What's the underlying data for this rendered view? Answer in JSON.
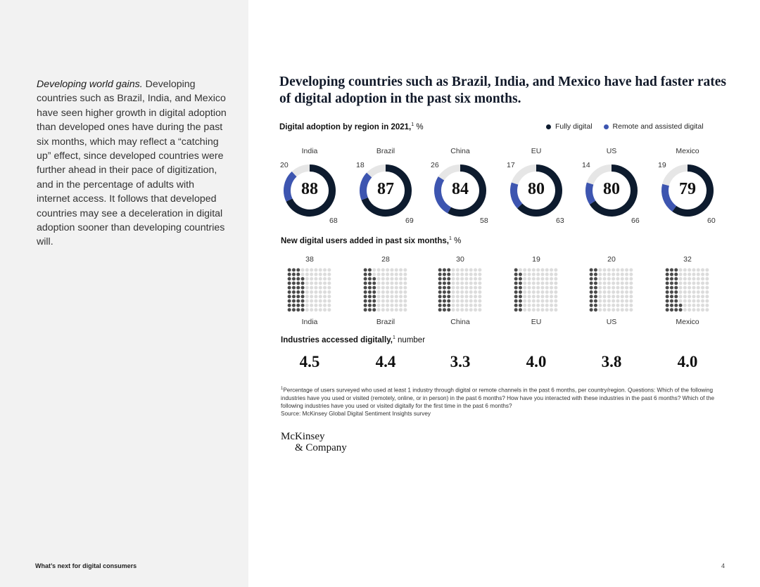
{
  "sidebar": {
    "intro_lead": "Developing world gains.",
    "intro_body": " Developing countries such as Brazil, India, and Mexico have seen higher growth in digital adoption than developed ones have during the past six months, which may reflect a “catching up” effect, since developed countries were further ahead in their pace of digitization, and in the percentage of adults with internet access. It follows that developed countries may see a deceleration in digital adoption sooner than developing countries will.",
    "footer": "What’s next for digital consumers"
  },
  "page_number": "4",
  "headline": "Developing countries such as Brazil, India, and Mexico have had faster rates of digital adoption in the past six months.",
  "sections": {
    "adoption_title": "Digital adoption by region in 2021,",
    "adoption_sup": "1",
    "adoption_unit": " %",
    "new_users_title": "New digital users added in past six months,",
    "new_users_sup": "1",
    "new_users_unit": " %",
    "industries_title": "Industries accessed digitally,",
    "industries_sup": "1",
    "industries_unit": " number"
  },
  "legend": {
    "fully_digital": "Fully digital",
    "remote_assisted": "Remote and assisted digital"
  },
  "colors": {
    "fully_digital": "#0d1b2e",
    "remote_assisted": "#3d55b0",
    "dot_filled": "#4a4a4a",
    "dot_empty": "#dcdcdc",
    "track": "#e6e6e6"
  },
  "chart_data": [
    {
      "type": "donut",
      "title": "Digital adoption by region in 2021",
      "categories": [
        "India",
        "Brazil",
        "China",
        "EU",
        "US",
        "Mexico"
      ],
      "total_labels": [
        "88",
        "87",
        "84",
        "80",
        "80",
        "79"
      ],
      "series": [
        {
          "name": "Fully digital",
          "values": [
            68,
            69,
            58,
            63,
            66,
            60
          ]
        },
        {
          "name": "Remote and assisted digital",
          "values": [
            20,
            18,
            26,
            17,
            14,
            19
          ]
        }
      ]
    },
    {
      "type": "waffle",
      "title": "New digital users added in past six months",
      "categories": [
        "India",
        "Brazil",
        "China",
        "EU",
        "US",
        "Mexico"
      ],
      "values": [
        38,
        28,
        30,
        19,
        20,
        32
      ]
    },
    {
      "type": "table",
      "title": "Industries accessed digitally",
      "categories": [
        "India",
        "Brazil",
        "China",
        "EU",
        "US",
        "Mexico"
      ],
      "values": [
        "4.5",
        "4.4",
        "3.3",
        "4.0",
        "3.8",
        "4.0"
      ]
    }
  ],
  "footnote": {
    "sup": "1",
    "text": "Percentage of users surveyed who used at least 1 industry through digital or remote channels in the past 6 months, per country/region. Questions: Which of the following industries have you used or visited (remotely, online, or in person) in the past 6 months? How have you interacted with these industries in the past 6 months? Which of the following industries have you used or visited digitally for the first time in the past 6 months?",
    "source": "Source: McKinsey Global Digital Sentiment Insights survey"
  },
  "logo": {
    "line1": "McKinsey",
    "line2": "& Company"
  }
}
